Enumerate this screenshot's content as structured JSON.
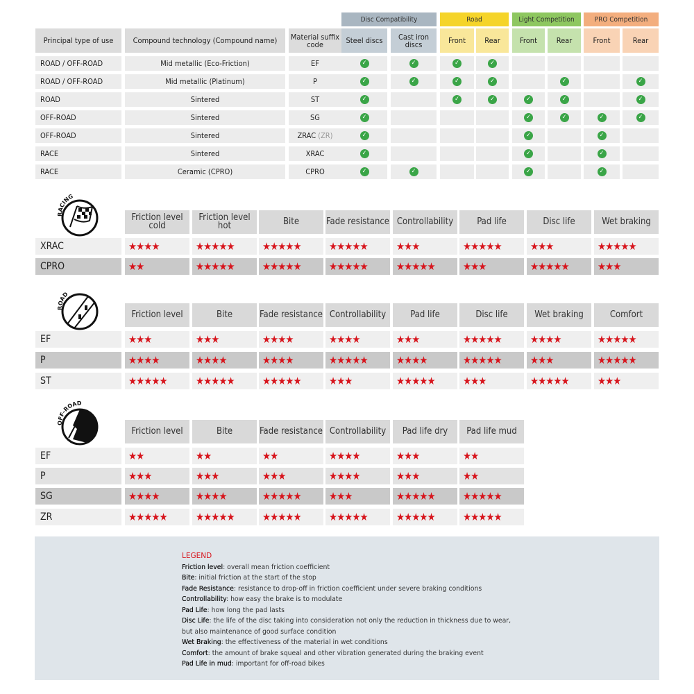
{
  "compat": {
    "groups": [
      {
        "label": "Disc Compatibility",
        "bar": "#a9b6c1",
        "cell": "#c4ced6"
      },
      {
        "label": "Road",
        "bar": "#f5d42a",
        "cell": "#f9e79a"
      },
      {
        "label": "Light Competition",
        "bar": "#8ec760",
        "cell": "#c5e2ad"
      },
      {
        "label": "PRO Competition",
        "bar": "#f3ae7e",
        "cell": "#f9d3b5"
      }
    ],
    "headers": [
      "Principal type of use",
      "Compound technology (Compound name)",
      "Material suffix code",
      "Steel discs",
      "Cast iron discs",
      "Front",
      "Rear",
      "Front",
      "Rear",
      "Front",
      "Rear"
    ],
    "rows": [
      {
        "use": "ROAD / OFF-ROAD",
        "compound": "Mid metallic (Eco-Friction)",
        "code": "EF",
        "code_extra": "",
        "checks": [
          1,
          1,
          1,
          1,
          0,
          0,
          0,
          0
        ]
      },
      {
        "use": "ROAD / OFF-ROAD",
        "compound": "Mid metallic (Platinum)",
        "code": "P",
        "code_extra": "",
        "checks": [
          1,
          1,
          1,
          1,
          0,
          1,
          0,
          1
        ]
      },
      {
        "use": "ROAD",
        "compound": "Sintered",
        "code": "ST",
        "code_extra": "",
        "checks": [
          1,
          0,
          1,
          1,
          1,
          1,
          0,
          1
        ]
      },
      {
        "use": "OFF-ROAD",
        "compound": "Sintered",
        "code": "SG",
        "code_extra": "",
        "checks": [
          1,
          0,
          0,
          0,
          1,
          1,
          1,
          1
        ]
      },
      {
        "use": "OFF-ROAD",
        "compound": "Sintered",
        "code": "ZRAC",
        "code_extra": "(ZR)",
        "checks": [
          1,
          0,
          0,
          0,
          1,
          0,
          1,
          0
        ]
      },
      {
        "use": "RACE",
        "compound": "Sintered",
        "code": "XRAC",
        "code_extra": "",
        "checks": [
          1,
          0,
          0,
          0,
          1,
          0,
          1,
          0
        ]
      },
      {
        "use": "RACE",
        "compound": "Ceramic (CPRO)",
        "code": "CPRO",
        "code_extra": "",
        "checks": [
          1,
          1,
          0,
          0,
          1,
          0,
          1,
          0
        ]
      }
    ],
    "check_color": "#3aa547"
  },
  "ratings": [
    {
      "icon_label": "RACING",
      "icon": "checkered-flag-icon",
      "headers": [
        "Friction level cold",
        "Friction level hot",
        "Bite",
        "Fade resistance",
        "Controllability",
        "Pad life",
        "Disc life",
        "Wet braking"
      ],
      "rows": [
        {
          "code": "XRAC",
          "stars": [
            4,
            5,
            5,
            5,
            3,
            5,
            3,
            5
          ]
        },
        {
          "code": "CPRO",
          "stars": [
            2,
            5,
            5,
            5,
            5,
            3,
            5,
            3
          ]
        }
      ]
    },
    {
      "icon_label": "ROAD",
      "icon": "road-icon",
      "headers": [
        "Friction level",
        "Bite",
        "Fade resistance",
        "Controllability",
        "Pad life",
        "Disc life",
        "Wet braking",
        "Comfort"
      ],
      "rows": [
        {
          "code": "EF",
          "stars": [
            3,
            3,
            4,
            4,
            3,
            5,
            4,
            5
          ]
        },
        {
          "code": "P",
          "stars": [
            4,
            4,
            4,
            5,
            4,
            5,
            3,
            5
          ]
        },
        {
          "code": "ST",
          "stars": [
            5,
            5,
            5,
            3,
            5,
            3,
            5,
            3
          ]
        }
      ]
    },
    {
      "icon_label": "OFF-ROAD",
      "icon": "off-road-icon",
      "headers": [
        "Friction level",
        "Bite",
        "Fade resistance",
        "Controllability",
        "Pad life dry",
        "Pad life mud"
      ],
      "rows": [
        {
          "code": "EF",
          "stars": [
            2,
            2,
            2,
            4,
            3,
            2
          ]
        },
        {
          "code": "P",
          "stars": [
            3,
            3,
            3,
            4,
            3,
            2
          ]
        },
        {
          "code": "SG",
          "stars": [
            4,
            4,
            5,
            3,
            5,
            5
          ]
        },
        {
          "code": "ZR",
          "stars": [
            5,
            5,
            5,
            5,
            5,
            5
          ]
        }
      ]
    }
  ],
  "star_color": "#d7141c",
  "legend": {
    "title": "LEGEND",
    "items": [
      {
        "term": "Friction level",
        "desc": ": overall mean friction coefficient"
      },
      {
        "term": "Bite",
        "desc": ": initial friction at the start of the stop"
      },
      {
        "term": "Fade Resistance",
        "desc": ": resistance to drop-off in friction coefficient under severe braking conditions"
      },
      {
        "term": "Controllability",
        "desc": ": how easy the brake is to modulate"
      },
      {
        "term": "Pad Life",
        "desc": ": how long the pad lasts"
      },
      {
        "term": "Disc Life",
        "desc": ": the life of the disc taking into consideration not only the reduction in thickness due to wear,"
      },
      {
        "term": "",
        "desc": "but also maintenance of good surface condition"
      },
      {
        "term": "Wet Braking",
        "desc": ": the effectiveness of the material in wet conditions"
      },
      {
        "term": "Comfort",
        "desc": ": the amount of brake squeal and other vibration generated during the braking event"
      },
      {
        "term": "Pad Life in mud",
        "desc": ": important for off-road bikes"
      }
    ]
  }
}
